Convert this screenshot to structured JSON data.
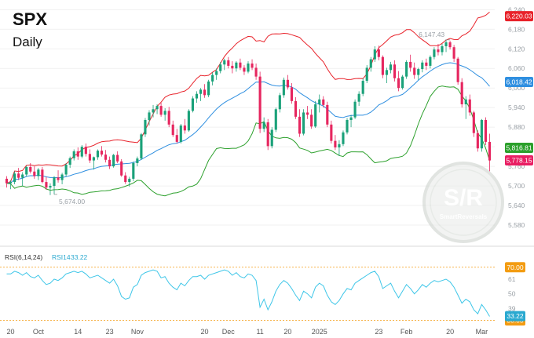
{
  "header": {
    "symbol": "SPX",
    "interval": "Daily"
  },
  "chart_data": {
    "type": "candlestick",
    "price_axis": {
      "min": 5520,
      "max": 6260,
      "ticks": [
        5580,
        5640,
        5700,
        5760,
        5820,
        5880,
        5940,
        6000,
        6060,
        6120,
        6180,
        6240
      ]
    },
    "x_labels": [
      "20",
      "Oct",
      "14",
      "23",
      "Nov",
      "20",
      "Dec",
      "11",
      "20",
      "2025",
      "23",
      "Feb",
      "20",
      "Mar"
    ],
    "x_label_index": [
      1,
      8,
      18,
      26,
      33,
      50,
      56,
      64,
      71,
      79,
      94,
      101,
      112,
      120
    ],
    "price_tags": [
      {
        "value": 6220.03,
        "label": "6,220.03",
        "color": "#e8222a"
      },
      {
        "value": 6018.42,
        "label": "6,018.42",
        "color": "#2f8fe0"
      },
      {
        "value": 5816.81,
        "label": "5,816.81",
        "color": "#2ca02c"
      },
      {
        "value": 5778.15,
        "label": "5,778.15",
        "color": "#e91e63"
      }
    ],
    "annotations": [
      {
        "label": "6,147.43",
        "index": 112,
        "value": 6147.43
      },
      {
        "label": "5,674.00",
        "index": 12,
        "value": 5674.0
      }
    ],
    "candles": [
      [
        5722,
        5730,
        5695,
        5708
      ],
      [
        5708,
        5718,
        5690,
        5712
      ],
      [
        5712,
        5745,
        5705,
        5738
      ],
      [
        5738,
        5755,
        5718,
        5725
      ],
      [
        5725,
        5742,
        5700,
        5735
      ],
      [
        5735,
        5762,
        5728,
        5758
      ],
      [
        5758,
        5770,
        5738,
        5744
      ],
      [
        5744,
        5760,
        5722,
        5730
      ],
      [
        5730,
        5755,
        5718,
        5750
      ],
      [
        5750,
        5758,
        5708,
        5712
      ],
      [
        5712,
        5728,
        5688,
        5695
      ],
      [
        5695,
        5708,
        5672,
        5700
      ],
      [
        5700,
        5730,
        5674,
        5726
      ],
      [
        5726,
        5748,
        5710,
        5718
      ],
      [
        5718,
        5740,
        5705,
        5735
      ],
      [
        5735,
        5770,
        5728,
        5765
      ],
      [
        5765,
        5790,
        5755,
        5785
      ],
      [
        5785,
        5812,
        5778,
        5806
      ],
      [
        5806,
        5818,
        5780,
        5790
      ],
      [
        5790,
        5825,
        5785,
        5820
      ],
      [
        5820,
        5830,
        5790,
        5798
      ],
      [
        5798,
        5812,
        5770,
        5778
      ],
      [
        5778,
        5790,
        5750,
        5788
      ],
      [
        5788,
        5812,
        5780,
        5808
      ],
      [
        5808,
        5822,
        5790,
        5796
      ],
      [
        5796,
        5810,
        5772,
        5780
      ],
      [
        5780,
        5790,
        5752,
        5760
      ],
      [
        5760,
        5798,
        5756,
        5795
      ],
      [
        5795,
        5806,
        5770,
        5775
      ],
      [
        5775,
        5782,
        5728,
        5732
      ],
      [
        5732,
        5742,
        5706,
        5712
      ],
      [
        5712,
        5728,
        5698,
        5722
      ],
      [
        5722,
        5775,
        5715,
        5770
      ],
      [
        5770,
        5790,
        5760,
        5784
      ],
      [
        5784,
        5862,
        5780,
        5858
      ],
      [
        5858,
        5908,
        5850,
        5902
      ],
      [
        5902,
        5932,
        5885,
        5925
      ],
      [
        5925,
        5948,
        5910,
        5935
      ],
      [
        5935,
        5950,
        5920,
        5945
      ],
      [
        5945,
        5955,
        5912,
        5918
      ],
      [
        5918,
        5938,
        5900,
        5930
      ],
      [
        5930,
        5942,
        5880,
        5888
      ],
      [
        5888,
        5900,
        5850,
        5856
      ],
      [
        5856,
        5875,
        5830,
        5835
      ],
      [
        5835,
        5890,
        5830,
        5885
      ],
      [
        5885,
        5905,
        5860,
        5870
      ],
      [
        5870,
        5935,
        5866,
        5930
      ],
      [
        5930,
        5975,
        5925,
        5968
      ],
      [
        5968,
        5990,
        5955,
        5982
      ],
      [
        5982,
        6000,
        5960,
        5995
      ],
      [
        5995,
        6012,
        5970,
        5978
      ],
      [
        5978,
        6025,
        5972,
        6020
      ],
      [
        6020,
        6048,
        6008,
        6040
      ],
      [
        6040,
        6060,
        6025,
        6052
      ],
      [
        6052,
        6080,
        6045,
        6072
      ],
      [
        6072,
        6090,
        6055,
        6085
      ],
      [
        6085,
        6095,
        6060,
        6068
      ],
      [
        6068,
        6082,
        6045,
        6060
      ],
      [
        6060,
        6082,
        6050,
        6078
      ],
      [
        6078,
        6090,
        6055,
        6062
      ],
      [
        6062,
        6070,
        6040,
        6050
      ],
      [
        6050,
        6082,
        6045,
        6075
      ],
      [
        6075,
        6088,
        6055,
        6062
      ],
      [
        6062,
        6075,
        6025,
        6035
      ],
      [
        6035,
        6050,
        5862,
        5875
      ],
      [
        5875,
        5910,
        5865,
        5895
      ],
      [
        5895,
        5905,
        5810,
        5822
      ],
      [
        5822,
        5880,
        5815,
        5872
      ],
      [
        5872,
        5940,
        5865,
        5935
      ],
      [
        5935,
        5985,
        5925,
        5978
      ],
      [
        5978,
        6032,
        5970,
        6025
      ],
      [
        6025,
        6040,
        5995,
        6002
      ],
      [
        6002,
        6015,
        5952,
        5960
      ],
      [
        5960,
        5972,
        5905,
        5912
      ],
      [
        5912,
        5935,
        5850,
        5860
      ],
      [
        5860,
        5935,
        5855,
        5925
      ],
      [
        5925,
        5945,
        5905,
        5918
      ],
      [
        5918,
        5935,
        5875,
        5882
      ],
      [
        5882,
        5960,
        5878,
        5950
      ],
      [
        5950,
        5980,
        5925,
        5965
      ],
      [
        5965,
        5975,
        5940,
        5948
      ],
      [
        5948,
        5958,
        5880,
        5888
      ],
      [
        5888,
        5900,
        5830,
        5838
      ],
      [
        5838,
        5856,
        5810,
        5818
      ],
      [
        5818,
        5840,
        5792,
        5828
      ],
      [
        5828,
        5870,
        5822,
        5864
      ],
      [
        5864,
        5908,
        5858,
        5902
      ],
      [
        5902,
        5918,
        5880,
        5910
      ],
      [
        5910,
        5965,
        5905,
        5958
      ],
      [
        5958,
        5990,
        5945,
        5982
      ],
      [
        5982,
        6030,
        5975,
        6022
      ],
      [
        6022,
        6070,
        6015,
        6062
      ],
      [
        6062,
        6095,
        6050,
        6088
      ],
      [
        6088,
        6128,
        6080,
        6118
      ],
      [
        6118,
        6130,
        6085,
        6095
      ],
      [
        6095,
        6100,
        6030,
        6040
      ],
      [
        6040,
        6062,
        6015,
        6055
      ],
      [
        6055,
        6080,
        6045,
        6072
      ],
      [
        6072,
        6085,
        6020,
        6030
      ],
      [
        6030,
        6052,
        5990,
        6000
      ],
      [
        6000,
        6040,
        5995,
        6035
      ],
      [
        6035,
        6085,
        6028,
        6080
      ],
      [
        6080,
        6102,
        6050,
        6062
      ],
      [
        6062,
        6078,
        6028,
        6040
      ],
      [
        6040,
        6062,
        6025,
        6058
      ],
      [
        6058,
        6085,
        6048,
        6078
      ],
      [
        6078,
        6090,
        6055,
        6068
      ],
      [
        6068,
        6100,
        6060,
        6095
      ],
      [
        6095,
        6125,
        6088,
        6118
      ],
      [
        6118,
        6135,
        6100,
        6110
      ],
      [
        6110,
        6135,
        6100,
        6128
      ],
      [
        6128,
        6147,
        6110,
        6140
      ],
      [
        6140,
        6145,
        6118,
        6125
      ],
      [
        6125,
        6132,
        6080,
        6090
      ],
      [
        6090,
        6095,
        6010,
        6018
      ],
      [
        6018,
        6030,
        5940,
        5950
      ],
      [
        5950,
        5975,
        5905,
        5965
      ],
      [
        5965,
        5980,
        5915,
        5925
      ],
      [
        5925,
        5930,
        5850,
        5862
      ],
      [
        5862,
        5870,
        5805,
        5815
      ],
      [
        5815,
        5905,
        5805,
        5902
      ],
      [
        5902,
        5910,
        5825,
        5835
      ],
      [
        5835,
        5860,
        5745,
        5778
      ]
    ],
    "rsi": {
      "label": "RSI(6,14,24)",
      "series_name": "RSI14",
      "current_label": "33.22",
      "axis": {
        "min": 28,
        "max": 74,
        "ticks": [
          39,
          50,
          61,
          70
        ]
      },
      "levels": [
        {
          "value": 70,
          "label": "70.00",
          "color": "#f39c12"
        },
        {
          "value": 30,
          "label": "30.00",
          "color": "#f39c12"
        }
      ],
      "current": {
        "value": 33.22,
        "label": "33.22",
        "color": "#2aa9d0"
      },
      "values": [
        65,
        65,
        67,
        66,
        64,
        66,
        63,
        62,
        64,
        60,
        57,
        58,
        61,
        60,
        62,
        65,
        66,
        67,
        66,
        67,
        65,
        62,
        63,
        64,
        62,
        60,
        58,
        61,
        56,
        48,
        46,
        47,
        55,
        57,
        64,
        66,
        67,
        68,
        67,
        62,
        63,
        58,
        55,
        53,
        58,
        56,
        60,
        63,
        63,
        64,
        61,
        64,
        65,
        66,
        67,
        68,
        67,
        64,
        66,
        63,
        62,
        65,
        64,
        60,
        40,
        46,
        38,
        44,
        52,
        57,
        60,
        58,
        54,
        49,
        45,
        52,
        50,
        47,
        55,
        58,
        56,
        49,
        44,
        42,
        45,
        50,
        54,
        53,
        58,
        60,
        62,
        64,
        66,
        67,
        63,
        54,
        56,
        58,
        52,
        47,
        52,
        57,
        54,
        50,
        53,
        57,
        55,
        58,
        60,
        59,
        60,
        61,
        59,
        55,
        49,
        43,
        46,
        44,
        38,
        35,
        42,
        38,
        33
      ]
    }
  }
}
